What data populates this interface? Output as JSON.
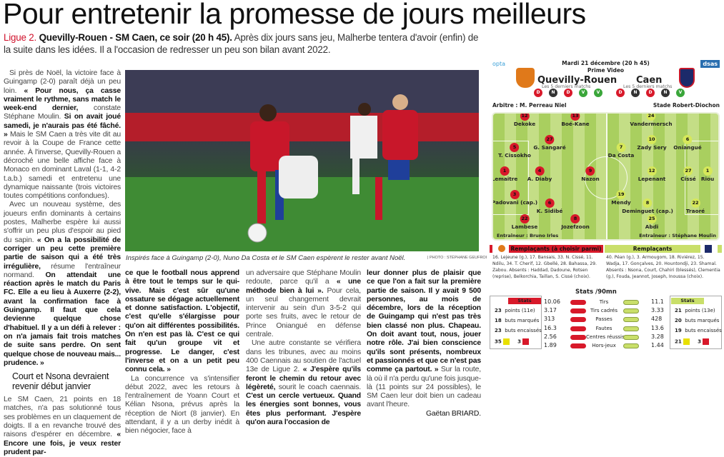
{
  "title": "Pour entretenir la promesse de jours meilleurs",
  "lead": {
    "kicker": "Ligue 2.",
    "bold": " Quevilly-Rouen - SM Caen, ce soir (20 h 45).",
    "text": " Après dix jours sans jeu, Malherbe tentera d'avoir (enfin) de la suite dans les idées. Il a l'occasion de redresser un peu son bilan avant 2022."
  },
  "photo": {
    "caption": "Inspirés face à Guingamp (2-0), Nuno Da Costa et le SM Caen espèrent le rester avant Noël.",
    "credit": "| PHOTO : STÉPHANE GEUFROI"
  },
  "columns": [
    [
      {
        "runs": [
          [
            "Si près de Noël, la victoire face à Guingamp (2-0) paraît déjà un peu loin. ",
            0
          ],
          [
            "« Pour nous, ça casse vraiment le rythme, sans match le week-end dernier,",
            1
          ],
          [
            " constate Stéphane Moulin. ",
            0
          ],
          [
            "Si on avait joué samedi, je n'aurais pas été fâché. »",
            1
          ],
          [
            " Mais le SM Caen a très vite dit au revoir à la Coupe de France cette année. À l'inverse, Quevilly-Rouen a décroché une belle affiche face à Monaco en dominant Laval (1-1, 4-2 t.a.b.) samedi et entretenu une dynamique naissante (trois victoires toutes compétitions confondues).",
            0
          ]
        ]
      },
      {
        "runs": [
          [
            "Avec un nouveau système, des joueurs enfin dominants à certains postes, Malherbe espère lui aussi s'offrir un peu plus d'espoir au pied du sapin. ",
            0
          ],
          [
            "« On a la possibilité de corriger un peu cette première partie de saison qui a été très irrégulière,",
            1
          ],
          [
            " résume l'entraîneur normand. ",
            0
          ],
          [
            "On attendait une réaction après le match du Paris FC. Elle a eu lieu à Auxerre (2-2), avant la confirmation face à Guingamp. Il faut que cela devienne quelque chose d'habituel. Il y a un défi à relever : on n'a jamais fait trois matches de suite sans perdre. On sent quelque chose de nouveau mais... prudence. »",
            1
          ]
        ]
      },
      {
        "heading": "Court et Nsona devraient revenir début janvier"
      },
      {
        "noind": true,
        "runs": [
          [
            "Le SM Caen, 21 points en 18 matches, n'a pas solutionné tous ses problèmes en un claquement de doigts. Il a en revanche trouvé des raisons d'espérer en décembre. ",
            0
          ],
          [
            "« Encore une fois, je veux rester prudent par-",
            1
          ]
        ]
      }
    ],
    [
      {
        "noind": true,
        "runs": [
          [
            "ce que le football nous apprend à être tout le temps sur le qui-vive. Mais c'est sûr qu'une ossature se dégage actuellement et donne satisfaction. L'objectif, c'est qu'elle s'élargisse pour qu'on ait différentes possibilités. On n'en est pas là. C'est ce qui fait qu'un groupe vit et progresse. Le danger, c'est l'inverse et on a un petit peu connu cela. »",
            1
          ]
        ]
      },
      {
        "runs": [
          [
            "La concurrence va s'intensifier début 2022, avec les retours à l'entraînement de Yoann Court et Kélian Nsona, prévus après la réception de Niort (8 janvier). En attendant, il y a un derby inédit à bien négocier, face à",
            0
          ]
        ]
      }
    ],
    [
      {
        "noind": true,
        "runs": [
          [
            "un adversaire que Stéphane Moulin redoute, parce qu'il a ",
            0
          ],
          [
            "« une méthode bien à lui ».",
            1
          ],
          [
            " Pour cela, un seul changement devrait intervenir au sein d'un 3-5-2 qui porte ses fruits, avec le retour de Prince Oniangué en défense centrale.",
            0
          ]
        ]
      },
      {
        "runs": [
          [
            "Une autre constante se vérifiera dans les tribunes, avec au moins 400 Caennais au soutien de l'actuel 13e de Ligue 2. ",
            0
          ],
          [
            "« J'espère qu'ils feront le chemin du retour avec légèreté,",
            1
          ],
          [
            " sourit le coach caennais. ",
            0
          ],
          [
            "C'est un cercle vertueux. Quand les énergies sont bonnes, vous êtes plus performant. J'espère qu'on aura l'occasion de",
            1
          ]
        ]
      }
    ],
    [
      {
        "noind": true,
        "runs": [
          [
            "leur donner plus de plaisir que ce que l'on a fait sur la première partie de saison. Il y avait 9 500 personnes, au mois de décembre, lors de la réception de Guingamp qui n'est pas très bien classé non plus. Chapeau. On doit avant tout, nous, jouer notre rôle. J'ai bien conscience qu'ils sont présents, nombreux et passionnés et que ce n'est pas comme ça partout. »",
            1
          ],
          [
            " Sur la route, là où il n'a perdu qu'une fois jusque-là (11 points sur 24 possibles), le SM Caen leur doit bien un cadeau avant l'heure.",
            0
          ]
        ]
      }
    ]
  ],
  "signature": "Gaëtan BRIARD.",
  "infographic": {
    "provider": "opta",
    "brand": "dsas",
    "date": "Mardi 21 décembre (20 h 45)",
    "broadcast": "Prime Video",
    "colors": {
      "home": "#d8192a",
      "away": "#d6e85a",
      "win": "#3aa63a",
      "draw": "#333333"
    },
    "home": {
      "name": "Quevilly-Rouen",
      "form_label": "Les 5 derniers matchs",
      "form": [
        "D",
        "N",
        "D",
        "V",
        "V"
      ],
      "logo_text": "QRM"
    },
    "away": {
      "name": "Caen",
      "form_label": "Les 5 derniers matchs",
      "form": [
        "D",
        "N",
        "D",
        "N",
        "V"
      ]
    },
    "referee": "Arbitre : M. Perreau Niel",
    "stadium": "Stade Robert-Diochon",
    "home_players": [
      {
        "n": "12",
        "name": "Dekoke"
      },
      {
        "n": "13",
        "name": "Boé-Kane"
      },
      {
        "n": "27",
        "name": "G. Sangaré"
      },
      {
        "n": "5",
        "name": "T. Cissokho"
      },
      {
        "n": "1",
        "name": "Lemaitre"
      },
      {
        "n": "4",
        "name": "A. Diaby"
      },
      {
        "n": "9",
        "name": "Nazon"
      },
      {
        "n": "3",
        "name": "Padovani (cap.)"
      },
      {
        "n": "6",
        "name": "K. Sidibé"
      },
      {
        "n": "22",
        "name": "Lambese"
      },
      {
        "n": "8",
        "name": "Jozefzoon"
      }
    ],
    "away_players": [
      {
        "n": "24",
        "name": "Vandermersch"
      },
      {
        "n": "10",
        "name": "Zady Sery"
      },
      {
        "n": "6",
        "name": "Oniangué"
      },
      {
        "n": "7",
        "name": "Da Costa"
      },
      {
        "n": "12",
        "name": "Lepenant"
      },
      {
        "n": "27",
        "name": "Cissé"
      },
      {
        "n": "1",
        "name": "Riou"
      },
      {
        "n": "19",
        "name": "Mendy"
      },
      {
        "n": "8",
        "name": "Deminguet (cap.)"
      },
      {
        "n": "22",
        "name": "Traoré"
      },
      {
        "n": "25",
        "name": "Abdi"
      }
    ],
    "home_coach": "Entraîneur : Bruno Irles",
    "away_coach": "Entraîneur : Stéphane Moulin",
    "home_subs_title": "Remplaçants (à choisir parmi)",
    "away_subs_title": "Remplaçants",
    "home_subs": "16. Lejeune (g.), 17. Bansais, 33. N. Cissé, 11. Ndilu, 34. T. Cherif, 12. Gbellé, 28. Bahassa, 29. Zabou.",
    "home_absents": "Absents : Haddad, Dadoune, Rotsen (reprise), Belkorchia, Taillan, S. Cissé (choix).",
    "away_subs": "40. Péan (g.), 3. Armougom, 18. Riviérez, 15. Wadja, 17. Gonçalves, 20. Hountondji, 23. Shamal.",
    "away_absents": "Absents : Nsona, Court, Chahiri (blessés), Clementia (g.), Fouda, Jeannot, Joseph, Inoussa (choix).",
    "stats_title": "Stats /90mn",
    "stats_label": "Stats",
    "stats": [
      {
        "label": "Tirs",
        "home": "10.06",
        "away": "11.1"
      },
      {
        "label": "Tirs cadrés",
        "home": "3.17",
        "away": "3.33"
      },
      {
        "label": "Passes",
        "home": "313",
        "away": "428"
      },
      {
        "label": "Fautes",
        "home": "16.3",
        "away": "13.6"
      },
      {
        "label": "Centres réussis",
        "home": "2.56",
        "away": "3.28"
      },
      {
        "label": "Hors-jeux",
        "home": "1.89",
        "away": "1.44"
      }
    ],
    "home_summary": [
      {
        "v": "23",
        "l": "points (11e)"
      },
      {
        "v": "18",
        "l": "buts marqués"
      },
      {
        "v": "23",
        "l": "buts encaissés"
      }
    ],
    "home_cards": {
      "yellow": "35",
      "red": "3"
    },
    "away_summary": [
      {
        "v": "21",
        "l": "points (13e)"
      },
      {
        "v": "20",
        "l": "buts marqués"
      },
      {
        "v": "19",
        "l": "buts encaissés"
      }
    ],
    "away_cards": {
      "yellow": "21",
      "red": "3"
    }
  }
}
